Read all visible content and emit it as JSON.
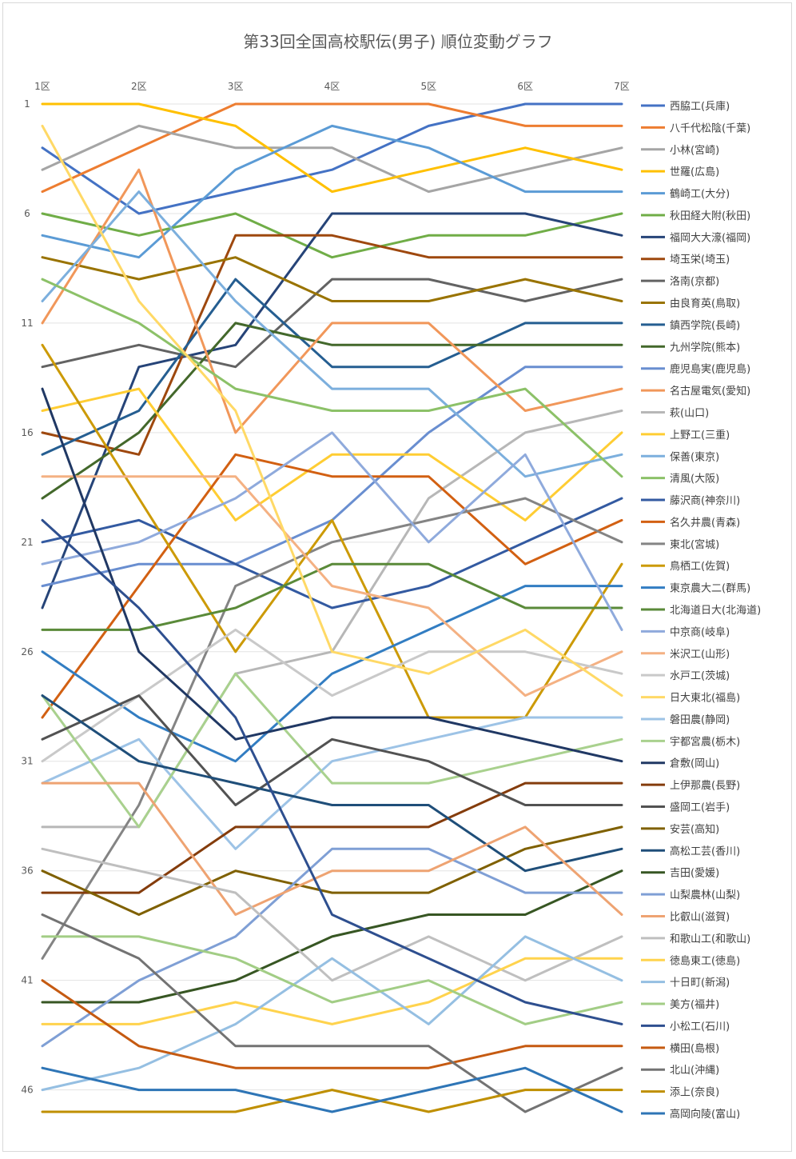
{
  "chart_data": {
    "type": "line",
    "title": "第33回全国高校駅伝(男子) 順位変動グラフ",
    "x": [
      "1区",
      "2区",
      "3区",
      "4区",
      "5区",
      "6区",
      "7区"
    ],
    "ylim": [
      1,
      47
    ],
    "y_inverted": true,
    "y_ticks": [
      1,
      6,
      11,
      16,
      21,
      26,
      31,
      36,
      41,
      46
    ],
    "grid": true,
    "legend_position": "right",
    "series": [
      {
        "name": "西脇工(兵庫)",
        "color": "#4472c4",
        "values": [
          3,
          6,
          5,
          4,
          2,
          1,
          1
        ]
      },
      {
        "name": "八千代松陰(千葉)",
        "color": "#ed7d31",
        "values": [
          5,
          3,
          1,
          1,
          1,
          2,
          2
        ]
      },
      {
        "name": "小林(宮崎)",
        "color": "#a5a5a5",
        "values": [
          4,
          2,
          3,
          3,
          5,
          4,
          3
        ]
      },
      {
        "name": "世羅(広島)",
        "color": "#ffc000",
        "values": [
          1,
          1,
          2,
          5,
          4,
          3,
          4
        ]
      },
      {
        "name": "鶴崎工(大分)",
        "color": "#5b9bd5",
        "values": [
          7,
          8,
          4,
          2,
          3,
          5,
          5
        ]
      },
      {
        "name": "秋田経大附(秋田)",
        "color": "#70ad47",
        "values": [
          6,
          7,
          6,
          8,
          7,
          7,
          6
        ]
      },
      {
        "name": "福岡大大濠(福岡)",
        "color": "#264478",
        "values": [
          24,
          13,
          12,
          6,
          6,
          6,
          7
        ]
      },
      {
        "name": "埼玉栄(埼玉)",
        "color": "#9e480e",
        "values": [
          16,
          17,
          7,
          7,
          8,
          8,
          8
        ]
      },
      {
        "name": "洛南(京都)",
        "color": "#636363",
        "values": [
          13,
          12,
          13,
          9,
          9,
          10,
          9
        ]
      },
      {
        "name": "由良育英(鳥取)",
        "color": "#997300",
        "values": [
          8,
          9,
          8,
          10,
          10,
          9,
          10
        ]
      },
      {
        "name": "鎮西学院(長崎)",
        "color": "#255e91",
        "values": [
          17,
          15,
          9,
          13,
          13,
          11,
          11
        ]
      },
      {
        "name": "九州学院(熊本)",
        "color": "#43682b",
        "values": [
          19,
          16,
          11,
          12,
          12,
          12,
          12
        ]
      },
      {
        "name": "鹿児島実(鹿児島)",
        "color": "#698ed0",
        "values": [
          23,
          22,
          22,
          20,
          16,
          13,
          13
        ]
      },
      {
        "name": "名古屋電気(愛知)",
        "color": "#f1975a",
        "values": [
          11,
          4,
          16,
          11,
          11,
          15,
          14
        ]
      },
      {
        "name": "萩(山口)",
        "color": "#b7b7b7",
        "values": [
          34,
          34,
          27,
          26,
          19,
          16,
          15
        ]
      },
      {
        "name": "上野工(三重)",
        "color": "#ffcd33",
        "values": [
          15,
          14,
          20,
          17,
          17,
          20,
          16
        ]
      },
      {
        "name": "保善(東京)",
        "color": "#7cafdd",
        "values": [
          10,
          5,
          10,
          14,
          14,
          18,
          17
        ]
      },
      {
        "name": "清風(大阪)",
        "color": "#8cc168",
        "values": [
          9,
          11,
          14,
          15,
          15,
          14,
          18
        ]
      },
      {
        "name": "藤沢商(神奈川)",
        "color": "#335aa1",
        "values": [
          21,
          20,
          22,
          24,
          23,
          21,
          19
        ]
      },
      {
        "name": "名久井農(青森)",
        "color": "#d26012",
        "values": [
          29,
          23,
          17,
          18,
          18,
          22,
          20
        ]
      },
      {
        "name": "東北(宮城)",
        "color": "#848484",
        "values": [
          40,
          33,
          23,
          21,
          20,
          19,
          21
        ]
      },
      {
        "name": "鳥栖工(佐賀)",
        "color": "#cc9a06",
        "values": [
          12,
          19,
          26,
          20,
          29,
          29,
          22
        ]
      },
      {
        "name": "東京農大二(群馬)",
        "color": "#327dc2",
        "values": [
          26,
          29,
          31,
          27,
          25,
          23,
          23
        ]
      },
      {
        "name": "北海道日大(北海道)",
        "color": "#5a8a39",
        "values": [
          25,
          25,
          24,
          22,
          22,
          24,
          24
        ]
      },
      {
        "name": "中京商(岐阜)",
        "color": "#8faadc",
        "values": [
          22,
          21,
          19,
          16,
          21,
          17,
          25
        ]
      },
      {
        "name": "米沢工(山形)",
        "color": "#f4b183",
        "values": [
          18,
          18,
          18,
          23,
          24,
          28,
          26
        ]
      },
      {
        "name": "水戸工(茨城)",
        "color": "#c9c9c9",
        "values": [
          31,
          28,
          25,
          28,
          26,
          26,
          27
        ]
      },
      {
        "name": "日大東北(福島)",
        "color": "#ffd966",
        "values": [
          2,
          10,
          15,
          26,
          27,
          25,
          28
        ]
      },
      {
        "name": "磐田農(静岡)",
        "color": "#9dc3e6",
        "values": [
          32,
          30,
          35,
          31,
          30,
          29,
          29
        ]
      },
      {
        "name": "宇都宮農(栃木)",
        "color": "#a9d18e",
        "values": [
          28,
          34,
          27,
          32,
          32,
          31,
          30
        ]
      },
      {
        "name": "倉敷(岡山)",
        "color": "#203864",
        "values": [
          14,
          26,
          30,
          29,
          29,
          30,
          31
        ]
      },
      {
        "name": "上伊那農(長野)",
        "color": "#843c0c",
        "values": [
          37,
          37,
          34,
          34,
          34,
          32,
          32
        ]
      },
      {
        "name": "盛岡工(岩手)",
        "color": "#525252",
        "values": [
          30,
          28,
          33,
          30,
          31,
          33,
          33
        ]
      },
      {
        "name": "安芸(高知)",
        "color": "#7f6000",
        "values": [
          36,
          38,
          36,
          37,
          37,
          35,
          34
        ]
      },
      {
        "name": "高松工芸(香川)",
        "color": "#1f4e79",
        "values": [
          28,
          31,
          32,
          33,
          33,
          36,
          35
        ]
      },
      {
        "name": "吉田(愛媛)",
        "color": "#375623",
        "values": [
          42,
          42,
          41,
          39,
          38,
          38,
          36
        ]
      },
      {
        "name": "山梨農林(山梨)",
        "color": "#7f9fd5",
        "values": [
          44,
          41,
          39,
          35,
          35,
          37,
          37
        ]
      },
      {
        "name": "比叡山(滋賀)",
        "color": "#eea372",
        "values": [
          32,
          32,
          38,
          36,
          36,
          34,
          38
        ]
      },
      {
        "name": "和歌山工(和歌山)",
        "color": "#bfbfbf",
        "values": [
          35,
          36,
          37,
          41,
          39,
          41,
          39
        ]
      },
      {
        "name": "徳島東工(徳島)",
        "color": "#ffd34d",
        "values": [
          43,
          43,
          42,
          43,
          42,
          40,
          40
        ]
      },
      {
        "name": "十日町(新潟)",
        "color": "#95bfe2",
        "values": [
          46,
          45,
          43,
          40,
          43,
          39,
          41
        ]
      },
      {
        "name": "美方(福井)",
        "color": "#a2cd85",
        "values": [
          39,
          39,
          40,
          42,
          41,
          43,
          42
        ]
      },
      {
        "name": "小松工(石川)",
        "color": "#2e4f8f",
        "values": [
          20,
          24,
          29,
          38,
          40,
          42,
          43
        ]
      },
      {
        "name": "横田(島根)",
        "color": "#c55a11",
        "values": [
          41,
          44,
          45,
          45,
          45,
          44,
          44
        ]
      },
      {
        "name": "北山(沖縄)",
        "color": "#737373",
        "values": [
          38,
          40,
          44,
          44,
          44,
          47,
          45
        ]
      },
      {
        "name": "添上(奈良)",
        "color": "#bf8f00",
        "values": [
          47,
          47,
          47,
          46,
          47,
          46,
          46
        ]
      },
      {
        "name": "高岡向陵(富山)",
        "color": "#2e75b6",
        "values": [
          45,
          46,
          46,
          47,
          46,
          45,
          47
        ]
      }
    ]
  }
}
